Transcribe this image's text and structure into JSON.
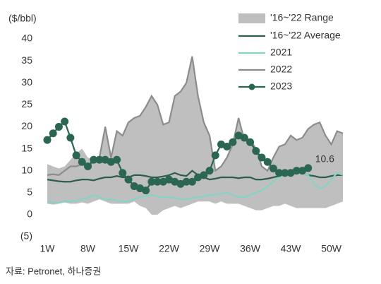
{
  "chart_data": {
    "type": "line",
    "y_label": "($/bbl)",
    "source": "자료: Petronet, 하나증권",
    "x": [
      1,
      2,
      3,
      4,
      5,
      6,
      7,
      8,
      9,
      10,
      11,
      12,
      13,
      14,
      15,
      16,
      17,
      18,
      19,
      20,
      21,
      22,
      23,
      24,
      25,
      26,
      27,
      28,
      29,
      30,
      31,
      32,
      33,
      34,
      35,
      36,
      37,
      38,
      39,
      40,
      41,
      42,
      43,
      44,
      45,
      46,
      47,
      48,
      49,
      50,
      51,
      52
    ],
    "xlim": [
      1,
      52
    ],
    "xticks": [
      {
        "value": 1,
        "label": "1W"
      },
      {
        "value": 8,
        "label": "8W"
      },
      {
        "value": 15,
        "label": "15W"
      },
      {
        "value": 22,
        "label": "22W"
      },
      {
        "value": 29,
        "label": "29W"
      },
      {
        "value": 36,
        "label": "36W"
      },
      {
        "value": 43,
        "label": "43W"
      },
      {
        "value": 50,
        "label": "50W"
      }
    ],
    "ylim": [
      -5,
      40
    ],
    "yticks": [
      {
        "value": -5,
        "label": "(5)"
      },
      0,
      5,
      10,
      15,
      20,
      25,
      30,
      35,
      40
    ],
    "grid": false,
    "legend": "top-right",
    "series": [
      {
        "name": "'16~'22 Range",
        "color": "#bfbfbf",
        "high": [
          11.5,
          11,
          10.5,
          11,
          12.5,
          14,
          15,
          13,
          12.5,
          13,
          20,
          13,
          19,
          18,
          21,
          22,
          22.5,
          24.5,
          27,
          25,
          20.5,
          21,
          27,
          28,
          30,
          36,
          27,
          21,
          18,
          10,
          11,
          13,
          16,
          22,
          17,
          17,
          15,
          11,
          10,
          13,
          15.5,
          16,
          18,
          17,
          17.5,
          19.5,
          20.5,
          21,
          18,
          16,
          19,
          18.5
        ],
        "low": [
          2.5,
          2.3,
          2.5,
          2.8,
          2.5,
          2.5,
          2.8,
          2.5,
          3,
          3.5,
          3,
          2.5,
          2.5,
          2.5,
          2.5,
          3,
          2,
          1.5,
          0,
          0,
          1,
          1.5,
          2,
          1.5,
          2,
          2.5,
          3,
          3,
          3,
          2.5,
          3,
          2.5,
          2.5,
          2.5,
          2,
          1.5,
          1,
          1,
          1.5,
          2,
          2,
          2.5,
          2,
          1.5,
          1.5,
          1.5,
          1.5,
          1.5,
          1.5,
          2,
          2.5,
          3
        ]
      },
      {
        "name": "'16~'22 Average",
        "color": "#2e5e4e",
        "values": [
          8,
          7.8,
          7.6,
          7.5,
          7.5,
          7.8,
          8,
          8,
          7.8,
          8.2,
          8.5,
          8.5,
          8.8,
          8.5,
          8.5,
          9,
          9,
          8.8,
          8.5,
          8.5,
          8.7,
          9,
          9.5,
          9,
          8.8,
          10,
          9,
          8.5,
          8,
          8.2,
          8.5,
          8.5,
          8.5,
          8.3,
          8.5,
          8.5,
          8,
          8,
          8.2,
          8.5,
          8.8,
          9,
          9.5,
          10,
          9.5,
          9,
          8.8,
          8.5,
          8.5,
          8.8,
          9,
          9
        ]
      },
      {
        "name": "2021",
        "color": "#86d3c4",
        "values": [
          3,
          2.8,
          2.7,
          3,
          3,
          3.2,
          3.5,
          3.8,
          4.5,
          4,
          3.5,
          3.5,
          3.2,
          3,
          3,
          3.5,
          4,
          4.2,
          4.5,
          4.2,
          4,
          4,
          3.8,
          3.5,
          3.5,
          3.8,
          4,
          4.2,
          4.5,
          4.5,
          4.8,
          5,
          4.5,
          4,
          4,
          4.5,
          5,
          5.5,
          6.5,
          7.5,
          8.5,
          9,
          9.5,
          9.5,
          9.5,
          9,
          7,
          6,
          6.5,
          8,
          9.5,
          9
        ]
      },
      {
        "name": "2022",
        "color": "#8c8c8c",
        "values": [
          9,
          9.2,
          9,
          10,
          11,
          11,
          11.5,
          11,
          12,
          13,
          20,
          13,
          19,
          18,
          21,
          22,
          22.5,
          24.5,
          27,
          25,
          20.5,
          21,
          27,
          28,
          30,
          36,
          27,
          21,
          18,
          10,
          11,
          13,
          16,
          22,
          17,
          17,
          15,
          11,
          10,
          13,
          15.5,
          16,
          18,
          17,
          17.5,
          19.5,
          20.5,
          21,
          18,
          16,
          19,
          18.5
        ]
      },
      {
        "name": "2023",
        "color": "#2b6652",
        "marker": true,
        "end_label": true,
        "values": [
          17,
          18.5,
          20,
          21.2,
          17.5,
          13.5,
          12,
          11,
          12.5,
          12.5,
          12.5,
          12,
          12.5,
          9.5,
          8,
          6.5,
          6,
          5.5,
          7.5,
          7.5,
          7.5,
          8,
          7.5,
          7,
          7.5,
          7.5,
          8.5,
          9,
          10,
          13.5,
          16,
          15.5,
          16.5,
          18,
          17.5,
          16.5,
          14.5,
          13,
          12,
          10.5,
          9.5,
          9.5,
          9.5,
          10,
          10,
          10.6,
          null,
          null,
          null,
          null,
          null,
          null
        ]
      }
    ]
  }
}
